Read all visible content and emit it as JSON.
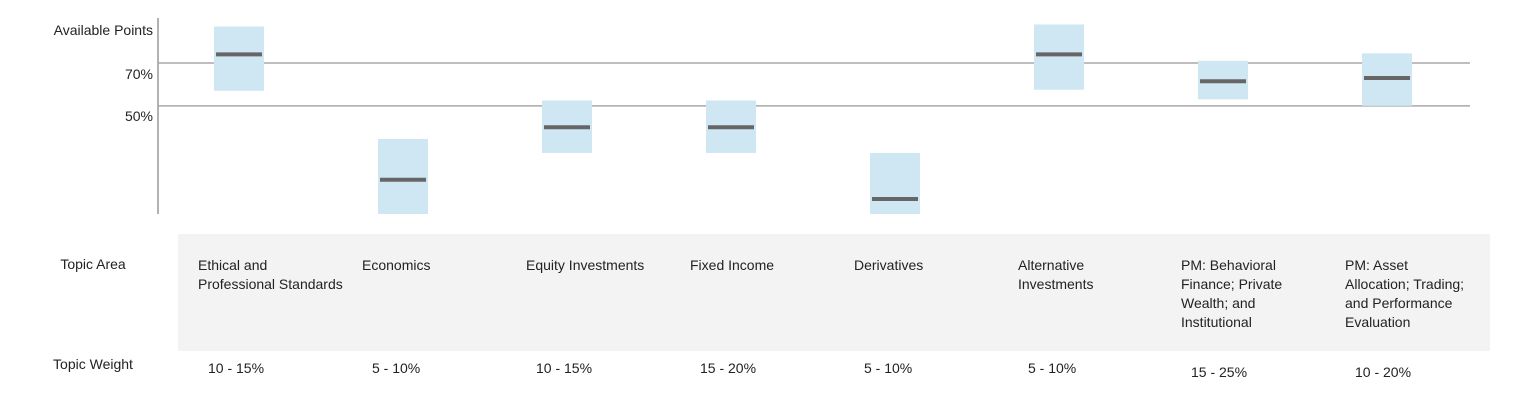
{
  "y_axis": {
    "title": "Available Points",
    "tick_labels": [
      "70%",
      "50%"
    ]
  },
  "rows": {
    "topic_area_label": "Topic Area",
    "topic_weight_label": "Topic Weight"
  },
  "colors": {
    "box_fill": "#cfe6f3",
    "median": "#666666",
    "reference_line": "#a8a8a8",
    "axis": "#999999",
    "band": "#f3f3f3"
  },
  "chart_data": {
    "type": "box",
    "ylabel": "Available Points",
    "reference_lines": [
      70,
      50
    ],
    "ylim": [
      -0.5,
      91
    ],
    "categories": [
      "Ethical and Professional Standards",
      "Economics",
      "Equity Investments",
      "Fixed Income",
      "Derivatives",
      "Alternative Investments",
      "PM: Behavioral Finance; Private Wealth; and Institutional",
      "PM: Asset Allocation; Trading; and Performance Evaluation"
    ],
    "ranges": [
      {
        "low": 57,
        "high": 87,
        "median": 74
      },
      {
        "low": -0.5,
        "high": 34.5,
        "median": 15.5
      },
      {
        "low": 28,
        "high": 52.5,
        "median": 40
      },
      {
        "low": 28,
        "high": 52.5,
        "median": 40
      },
      {
        "low": -0.5,
        "high": 28,
        "median": 6.5
      },
      {
        "low": 57.5,
        "high": 88,
        "median": 74
      },
      {
        "low": 53,
        "high": 71,
        "median": 61.5
      },
      {
        "low": 50,
        "high": 74.5,
        "median": 63
      }
    ],
    "topic_weights": [
      "10 - 15%",
      "5 - 10%",
      "10 - 15%",
      "15 - 20%",
      "5 - 10%",
      "5 - 10%",
      "15 - 25%",
      "10 - 20%"
    ]
  },
  "topics": [
    {
      "label": "Ethical and Professional Standards",
      "weight": "10 - 15%"
    },
    {
      "label": "Economics",
      "weight": "5 - 10%"
    },
    {
      "label": "Equity Investments",
      "weight": "10 - 15%"
    },
    {
      "label": "Fixed Income",
      "weight": "15 - 20%"
    },
    {
      "label": "Derivatives",
      "weight": "5 - 10%"
    },
    {
      "label": "Alternative Investments",
      "weight": "5 - 10%"
    },
    {
      "label": "PM: Behavioral Finance; Private Wealth; and Institutional",
      "weight": "15 - 25%"
    },
    {
      "label": "PM: Asset Allocation; Trading; and Performance Evaluation",
      "weight": "10 - 20%"
    }
  ]
}
